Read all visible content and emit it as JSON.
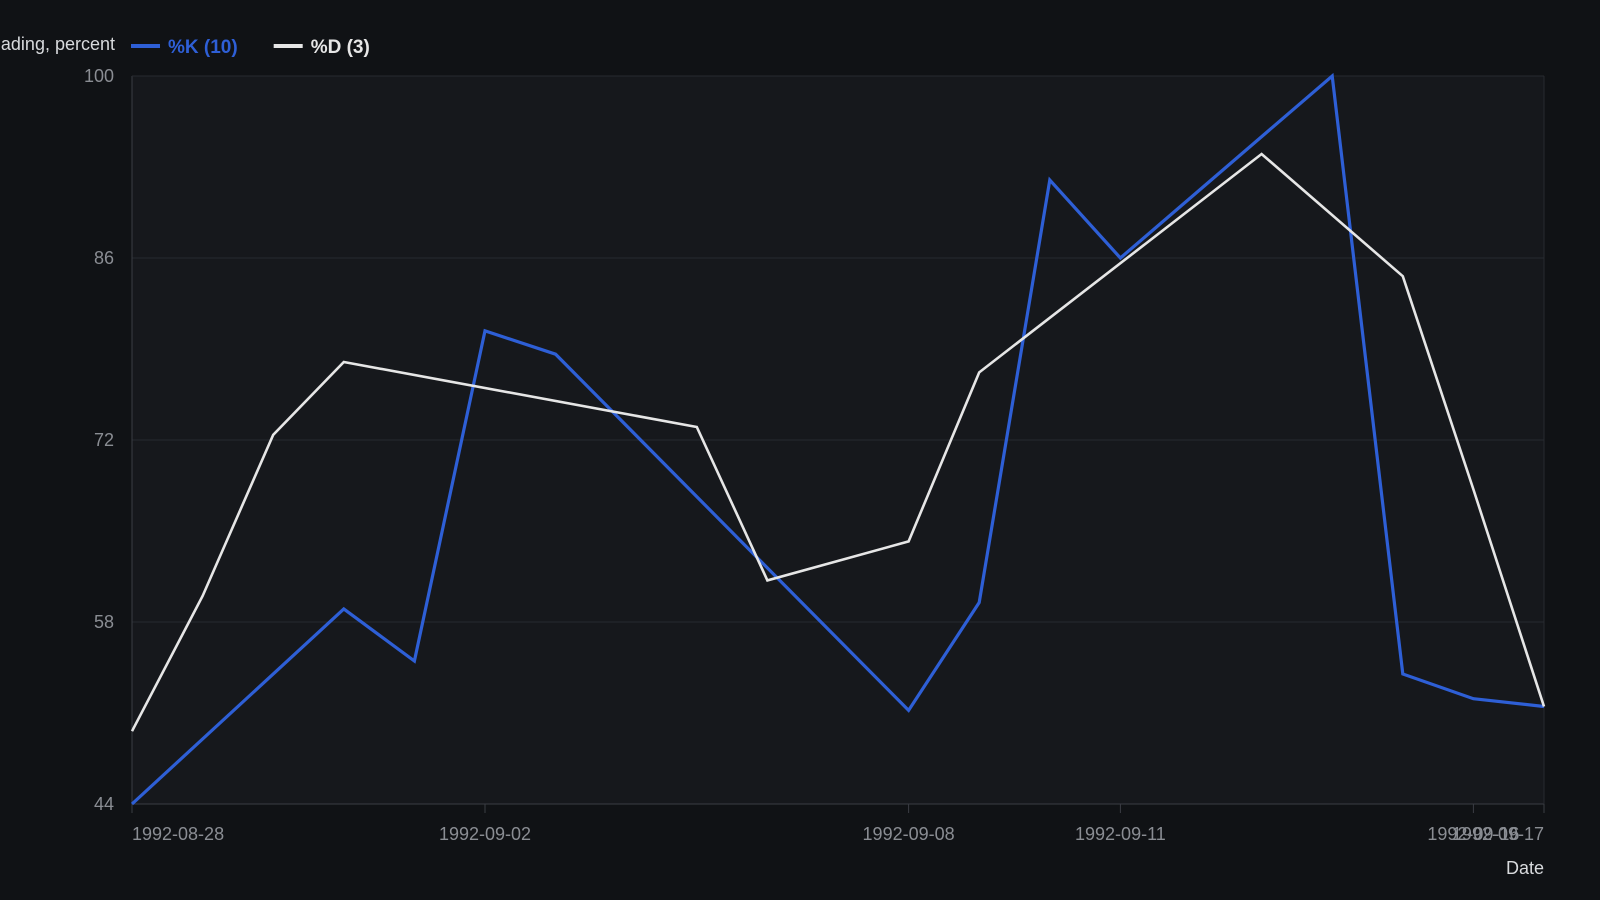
{
  "colors": {
    "page_background": "#101215",
    "plot_background": "#16181c",
    "grid": "#272a30",
    "axis": "#3a3d44",
    "tick_text": "#8a8d93",
    "title_text": "#d8dadd"
  },
  "chart_data": {
    "type": "line",
    "ylabel": "ading, percent",
    "xlabel": "Date",
    "ylim": [
      44,
      100
    ],
    "yticks": [
      44,
      58,
      72,
      86,
      100
    ],
    "x_range": [
      "1992-08-28",
      "1992-09-17"
    ],
    "xticks": [
      {
        "date": "1992-08-28",
        "label": "1992-08-28"
      },
      {
        "date": "1992-09-02",
        "label": "1992-09-02"
      },
      {
        "date": "1992-09-08",
        "label": "1992-09-08"
      },
      {
        "date": "1992-09-11",
        "label": "1992-09-11"
      },
      {
        "date": "1992-09-16",
        "label": "1992-09-16"
      },
      {
        "date": "1992-09-17",
        "label": "1992-09-17"
      }
    ],
    "grid": true,
    "legend_position": "top-left",
    "series": [
      {
        "name": "%K (10)",
        "color": "#2e5fd6",
        "points": [
          {
            "x": "1992-08-28",
            "y": 44.0
          },
          {
            "x": "1992-08-31",
            "y": 59.0
          },
          {
            "x": "1992-09-01",
            "y": 55.0
          },
          {
            "x": "1992-09-02",
            "y": 80.4
          },
          {
            "x": "1992-09-03",
            "y": 78.6
          },
          {
            "x": "1992-09-08",
            "y": 51.2
          },
          {
            "x": "1992-09-09",
            "y": 59.5
          },
          {
            "x": "1992-09-10",
            "y": 92.0
          },
          {
            "x": "1992-09-11",
            "y": 86.0
          },
          {
            "x": "1992-09-14",
            "y": 100.0
          },
          {
            "x": "1992-09-15",
            "y": 54.0
          },
          {
            "x": "1992-09-16",
            "y": 52.1
          },
          {
            "x": "1992-09-17",
            "y": 51.5
          }
        ]
      },
      {
        "name": "%D (3)",
        "color": "#e6e6e6",
        "points": [
          {
            "x": "1992-08-28",
            "y": 49.6
          },
          {
            "x": "1992-08-29",
            "y": 60.0
          },
          {
            "x": "1992-08-30",
            "y": 72.4
          },
          {
            "x": "1992-08-31",
            "y": 78.0
          },
          {
            "x": "1992-09-05",
            "y": 73.0
          },
          {
            "x": "1992-09-06",
            "y": 61.2
          },
          {
            "x": "1992-09-08",
            "y": 64.2
          },
          {
            "x": "1992-09-09",
            "y": 77.2
          },
          {
            "x": "1992-09-13",
            "y": 94.0
          },
          {
            "x": "1992-09-15",
            "y": 84.6
          },
          {
            "x": "1992-09-16",
            "y": 68.2
          },
          {
            "x": "1992-09-17",
            "y": 51.5
          }
        ]
      }
    ]
  }
}
